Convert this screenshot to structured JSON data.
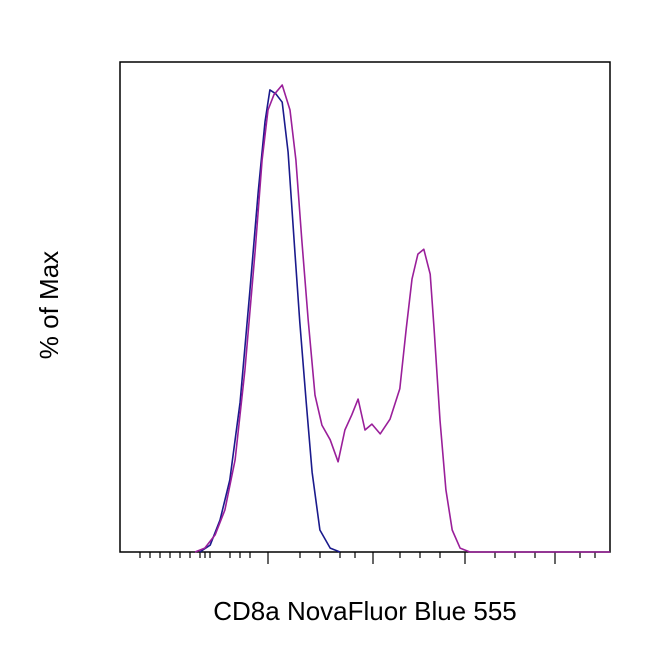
{
  "chart_data": {
    "type": "line",
    "x_label": "CD8a NovaFluor Blue 555",
    "y_label": "% of Max",
    "xlim": [
      0,
      100
    ],
    "ylim": [
      0,
      100
    ],
    "series": [
      {
        "color": "#1a1a8c",
        "x": [
          16.3,
          18.4,
          20.4,
          22.4,
          24.5,
          26.5,
          28.2,
          29.6,
          30.6,
          31.8,
          33.1,
          34.3,
          35.7,
          36.7,
          38,
          39.2,
          40.8,
          42.9,
          44.9
        ],
        "values": [
          0,
          1.4,
          6.5,
          14.7,
          30.6,
          53.1,
          73.5,
          87.8,
          94.3,
          93.5,
          91.8,
          81.6,
          61.2,
          46.9,
          30.6,
          16.3,
          4.5,
          0.8,
          0
        ]
      },
      {
        "color": "#9a1f9a",
        "x": [
          15.3,
          17.3,
          19.4,
          21.4,
          23.5,
          25.5,
          27.6,
          29,
          30.2,
          31.4,
          33.1,
          34.7,
          35.9,
          37.1,
          38.4,
          39.8,
          41.2,
          42.9,
          44.5,
          45.9,
          47.3,
          48.6,
          50,
          51.4,
          53.1,
          55.1,
          57.1,
          58.4,
          59.6,
          60.8,
          62,
          63.3,
          64.1,
          65.3,
          66.5,
          67.8,
          69.4,
          71.4,
          100
        ],
        "values": [
          0,
          0.8,
          3.5,
          8.6,
          18.8,
          37.1,
          61.6,
          80,
          90.2,
          93.3,
          95.3,
          90.2,
          80,
          63.7,
          47.3,
          32,
          25.9,
          22.9,
          18.4,
          24.9,
          28,
          31.2,
          24.9,
          26.1,
          24.1,
          27.1,
          33.3,
          45.5,
          55.7,
          60.8,
          61.8,
          56.7,
          45.5,
          26.9,
          12.7,
          4.5,
          0.8,
          0,
          0
        ]
      }
    ]
  }
}
